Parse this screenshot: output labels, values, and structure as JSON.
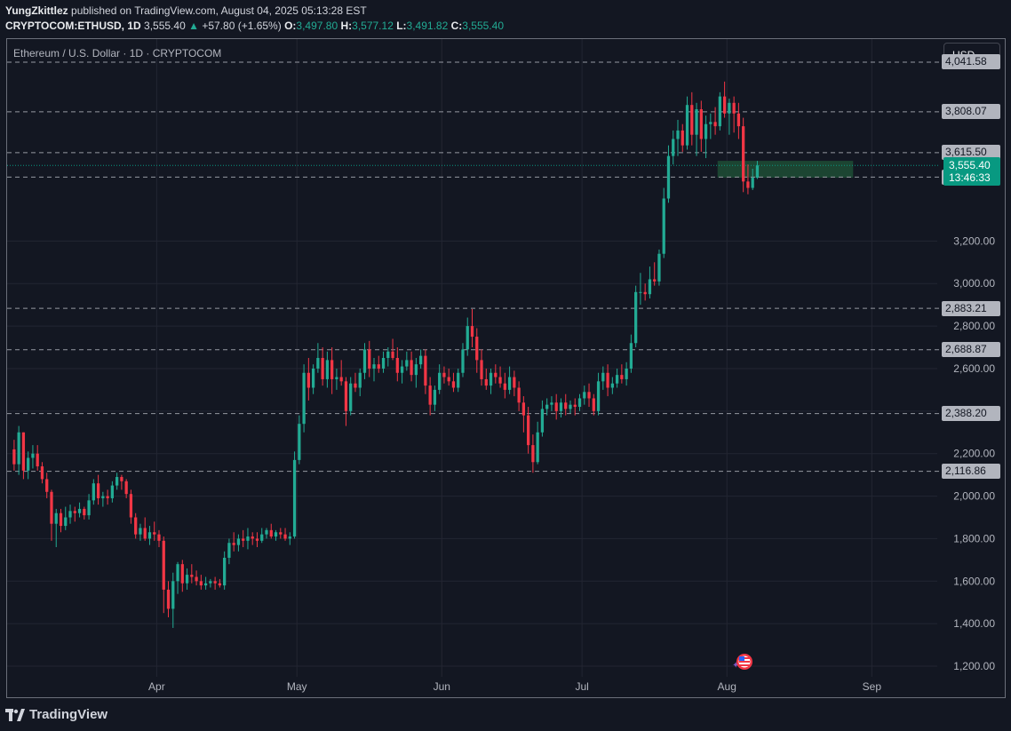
{
  "header": {
    "publisher": "YungZkittlez",
    "published_text": "published on TradingView.com, August 04, 2025 05:13:28 EST",
    "symbol": "CRYPTOCOM:ETHUSD, 1D",
    "last": "3,555.40",
    "change": "+57.80 (+1.65%)",
    "open_label": "O:",
    "open": "3,497.80",
    "high_label": "H:",
    "high": "3,577.12",
    "low_label": "L:",
    "low": "3,491.82",
    "close_label": "C:",
    "close": "3,555.40"
  },
  "toolbar": {
    "currency": "USD"
  },
  "brand": {
    "name": "TradingView"
  },
  "colors": {
    "up": "#22ab94",
    "down": "#f23645",
    "background": "#131722",
    "grid": "#232632",
    "level_line": "#9598a1",
    "zone": "#1e4d35"
  },
  "chart_data": {
    "type": "candlestick",
    "title": "Ethereum / U.S. Dollar · 1D · CRYPTOCOM",
    "ylim": [
      1150,
      4150
    ],
    "y_ticks": [
      "1,200.00",
      "1,400.00",
      "1,600.00",
      "1,800.00",
      "2,000.00",
      "2,200.00",
      "2,400.00",
      "2,600.00",
      "2,800.00",
      "3,000.00",
      "3,200.00"
    ],
    "y_tick_values": [
      1200,
      1400,
      1600,
      1800,
      2000,
      2200,
      2400,
      2600,
      2800,
      3000,
      3200
    ],
    "x_ticks": [
      "Apr",
      "May",
      "Jun",
      "Jul",
      "Aug",
      "Sep"
    ],
    "x_tick_dates": [
      "2025-04-01",
      "2025-05-01",
      "2025-06-01",
      "2025-07-01",
      "2025-08-01",
      "2025-09-01"
    ],
    "x_range": [
      "2025-02-28",
      "2025-09-15"
    ],
    "grid": true,
    "levels": [
      {
        "label": "4,041.58",
        "value": 4041.58
      },
      {
        "label": "3,808.07",
        "value": 3808.07
      },
      {
        "label": "3,615.50",
        "value": 3615.5
      },
      {
        "label": "3,500.62",
        "value": 3500.62
      },
      {
        "label": "2,883.21",
        "value": 2883.21
      },
      {
        "label": "2,688.87",
        "value": 2688.87
      },
      {
        "label": "2,388.20",
        "value": 2388.2
      },
      {
        "label": "2,116.86",
        "value": 2116.86
      }
    ],
    "current": {
      "price": "3,555.40",
      "value": 3555.4,
      "countdown": "13:46:33"
    },
    "zone": {
      "from": "2025-07-30",
      "to": "2025-08-28",
      "low": 3497.8,
      "high": 3577.12
    },
    "series": [
      {
        "start_date": "2025-03-01",
        "candles": [
          [
            2220,
            2265,
            2120,
            2150
          ],
          [
            2150,
            2330,
            2100,
            2300
          ],
          [
            2300,
            2300,
            2080,
            2120
          ],
          [
            2120,
            2210,
            2080,
            2180
          ],
          [
            2180,
            2240,
            2130,
            2200
          ],
          [
            2200,
            2240,
            2120,
            2140
          ],
          [
            2140,
            2160,
            2060,
            2080
          ],
          [
            2080,
            2110,
            1990,
            2020
          ],
          [
            2020,
            2030,
            1790,
            1870
          ],
          [
            1870,
            1940,
            1760,
            1920
          ],
          [
            1920,
            1940,
            1830,
            1860
          ],
          [
            1860,
            1950,
            1840,
            1900
          ],
          [
            1900,
            1960,
            1870,
            1930
          ],
          [
            1930,
            1950,
            1880,
            1920
          ],
          [
            1920,
            1970,
            1900,
            1940
          ],
          [
            1940,
            1950,
            1890,
            1910
          ],
          [
            1910,
            2010,
            1890,
            1980
          ],
          [
            1980,
            2080,
            1960,
            2060
          ],
          [
            2060,
            2100,
            1960,
            1990
          ],
          [
            1990,
            2020,
            1950,
            2000
          ],
          [
            2000,
            2030,
            1960,
            1990
          ],
          [
            1990,
            2070,
            1970,
            2050
          ],
          [
            2050,
            2110,
            2030,
            2090
          ],
          [
            2090,
            2100,
            2030,
            2070
          ],
          [
            2070,
            2080,
            1990,
            2010
          ],
          [
            2010,
            2030,
            1870,
            1900
          ],
          [
            1900,
            1920,
            1800,
            1820
          ],
          [
            1820,
            1870,
            1790,
            1850
          ],
          [
            1850,
            1900,
            1790,
            1800
          ],
          [
            1800,
            1860,
            1770,
            1830
          ],
          [
            1830,
            1880,
            1790,
            1820
          ],
          [
            1820,
            1840,
            1760,
            1790
          ],
          [
            1790,
            1810,
            1450,
            1560
          ],
          [
            1560,
            1600,
            1430,
            1470
          ],
          [
            1470,
            1640,
            1380,
            1600
          ],
          [
            1600,
            1690,
            1540,
            1680
          ],
          [
            1680,
            1700,
            1550,
            1590
          ],
          [
            1590,
            1660,
            1560,
            1630
          ],
          [
            1630,
            1680,
            1590,
            1620
          ],
          [
            1620,
            1650,
            1580,
            1600
          ],
          [
            1600,
            1630,
            1560,
            1580
          ],
          [
            1580,
            1620,
            1560,
            1590
          ],
          [
            1590,
            1610,
            1570,
            1600
          ],
          [
            1600,
            1620,
            1560,
            1590
          ],
          [
            1590,
            1610,
            1570,
            1580
          ],
          [
            1580,
            1740,
            1560,
            1710
          ],
          [
            1710,
            1800,
            1680,
            1780
          ],
          [
            1780,
            1830,
            1740,
            1770
          ],
          [
            1770,
            1820,
            1740,
            1800
          ],
          [
            1800,
            1840,
            1760,
            1790
          ],
          [
            1790,
            1850,
            1750,
            1810
          ],
          [
            1810,
            1830,
            1770,
            1800
          ],
          [
            1800,
            1830,
            1760,
            1790
          ],
          [
            1790,
            1850,
            1780,
            1820
          ],
          [
            1820,
            1850,
            1800,
            1840
          ],
          [
            1840,
            1870,
            1800,
            1810
          ],
          [
            1810,
            1840,
            1790,
            1830
          ],
          [
            1830,
            1850,
            1800,
            1820
          ],
          [
            1820,
            1850,
            1790,
            1800
          ],
          [
            1800,
            1830,
            1770,
            1810
          ],
          [
            1810,
            2210,
            1800,
            2170
          ],
          [
            2170,
            2380,
            2150,
            2340
          ],
          [
            2340,
            2620,
            2300,
            2580
          ],
          [
            2580,
            2650,
            2450,
            2510
          ],
          [
            2510,
            2620,
            2480,
            2600
          ],
          [
            2600,
            2720,
            2580,
            2650
          ],
          [
            2650,
            2700,
            2520,
            2550
          ],
          [
            2550,
            2680,
            2510,
            2640
          ],
          [
            2640,
            2700,
            2480,
            2550
          ],
          [
            2550,
            2600,
            2500,
            2560
          ],
          [
            2560,
            2640,
            2520,
            2540
          ],
          [
            2540,
            2560,
            2330,
            2400
          ],
          [
            2400,
            2560,
            2380,
            2530
          ],
          [
            2530,
            2580,
            2490,
            2510
          ],
          [
            2510,
            2600,
            2470,
            2580
          ],
          [
            2580,
            2720,
            2550,
            2690
          ],
          [
            2690,
            2730,
            2560,
            2600
          ],
          [
            2600,
            2650,
            2540,
            2620
          ],
          [
            2620,
            2660,
            2580,
            2600
          ],
          [
            2600,
            2680,
            2580,
            2650
          ],
          [
            2650,
            2700,
            2610,
            2680
          ],
          [
            2680,
            2740,
            2640,
            2650
          ],
          [
            2650,
            2700,
            2540,
            2580
          ],
          [
            2580,
            2640,
            2530,
            2610
          ],
          [
            2610,
            2680,
            2590,
            2640
          ],
          [
            2640,
            2680,
            2540,
            2570
          ],
          [
            2570,
            2650,
            2510,
            2620
          ],
          [
            2620,
            2690,
            2600,
            2660
          ],
          [
            2660,
            2690,
            2480,
            2520
          ],
          [
            2520,
            2560,
            2380,
            2430
          ],
          [
            2430,
            2520,
            2400,
            2500
          ],
          [
            2500,
            2620,
            2480,
            2580
          ],
          [
            2580,
            2610,
            2530,
            2560
          ],
          [
            2560,
            2600,
            2520,
            2540
          ],
          [
            2540,
            2580,
            2490,
            2510
          ],
          [
            2510,
            2600,
            2490,
            2580
          ],
          [
            2580,
            2720,
            2560,
            2690
          ],
          [
            2690,
            2840,
            2660,
            2800
          ],
          [
            2800,
            2880,
            2700,
            2750
          ],
          [
            2750,
            2790,
            2580,
            2640
          ],
          [
            2640,
            2690,
            2520,
            2550
          ],
          [
            2550,
            2600,
            2500,
            2520
          ],
          [
            2520,
            2600,
            2480,
            2580
          ],
          [
            2580,
            2620,
            2530,
            2560
          ],
          [
            2560,
            2610,
            2510,
            2530
          ],
          [
            2530,
            2580,
            2460,
            2500
          ],
          [
            2500,
            2610,
            2480,
            2560
          ],
          [
            2560,
            2590,
            2470,
            2510
          ],
          [
            2510,
            2540,
            2400,
            2440
          ],
          [
            2440,
            2470,
            2300,
            2380
          ],
          [
            2380,
            2420,
            2200,
            2240
          ],
          [
            2240,
            2290,
            2110,
            2160
          ],
          [
            2160,
            2350,
            2150,
            2300
          ],
          [
            2300,
            2450,
            2280,
            2410
          ],
          [
            2410,
            2460,
            2380,
            2430
          ],
          [
            2430,
            2470,
            2400,
            2440
          ],
          [
            2440,
            2480,
            2360,
            2400
          ],
          [
            2400,
            2460,
            2370,
            2440
          ],
          [
            2440,
            2480,
            2380,
            2410
          ],
          [
            2410,
            2450,
            2390,
            2430
          ],
          [
            2430,
            2460,
            2380,
            2420
          ],
          [
            2420,
            2480,
            2400,
            2460
          ],
          [
            2460,
            2520,
            2430,
            2490
          ],
          [
            2490,
            2530,
            2420,
            2460
          ],
          [
            2460,
            2480,
            2380,
            2400
          ],
          [
            2400,
            2580,
            2380,
            2540
          ],
          [
            2540,
            2610,
            2500,
            2580
          ],
          [
            2580,
            2620,
            2470,
            2510
          ],
          [
            2510,
            2560,
            2480,
            2530
          ],
          [
            2530,
            2600,
            2510,
            2570
          ],
          [
            2570,
            2620,
            2530,
            2550
          ],
          [
            2550,
            2630,
            2520,
            2600
          ],
          [
            2600,
            2760,
            2580,
            2720
          ],
          [
            2720,
            2990,
            2700,
            2960
          ],
          [
            2960,
            3050,
            2900,
            2960
          ],
          [
            2960,
            3000,
            2920,
            2950
          ],
          [
            2950,
            3080,
            2930,
            3020
          ],
          [
            3020,
            3100,
            2990,
            3010
          ],
          [
            3010,
            3160,
            2990,
            3140
          ],
          [
            3140,
            3450,
            3120,
            3400
          ],
          [
            3400,
            3650,
            3380,
            3600
          ],
          [
            3600,
            3720,
            3560,
            3680
          ],
          [
            3680,
            3770,
            3600,
            3720
          ],
          [
            3720,
            3750,
            3620,
            3650
          ],
          [
            3650,
            3880,
            3630,
            3840
          ],
          [
            3840,
            3900,
            3650,
            3700
          ],
          [
            3700,
            3850,
            3600,
            3820
          ],
          [
            3820,
            3860,
            3620,
            3680
          ],
          [
            3680,
            3790,
            3590,
            3750
          ],
          [
            3750,
            3800,
            3680,
            3760
          ],
          [
            3760,
            3830,
            3700,
            3740
          ],
          [
            3740,
            3900,
            3720,
            3880
          ],
          [
            3880,
            3950,
            3780,
            3800
          ],
          [
            3800,
            3870,
            3700,
            3850
          ],
          [
            3850,
            3880,
            3710,
            3800
          ],
          [
            3800,
            3850,
            3680,
            3740
          ],
          [
            3740,
            3780,
            3430,
            3480
          ],
          [
            3480,
            3560,
            3420,
            3450
          ],
          [
            3450,
            3540,
            3440,
            3497.8
          ],
          [
            3497.8,
            3577.12,
            3491.82,
            3555.4
          ]
        ]
      }
    ]
  }
}
